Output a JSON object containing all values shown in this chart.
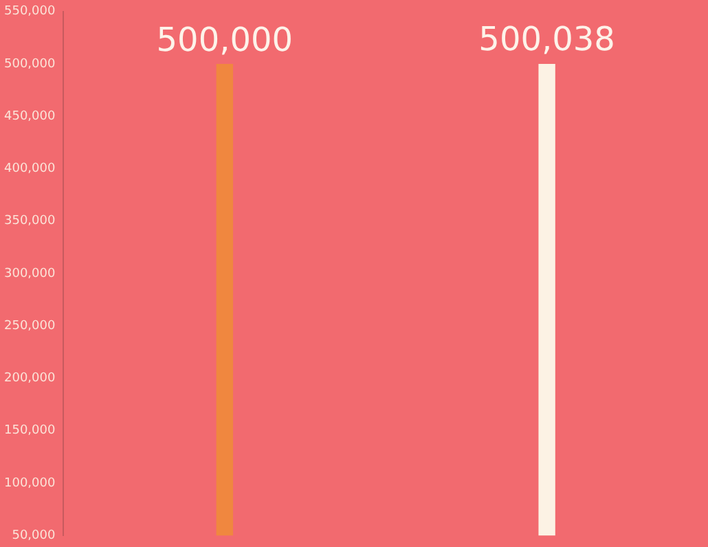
{
  "chart_data": {
    "type": "bar",
    "categories": [
      null,
      null
    ],
    "values": [
      500000,
      500038
    ],
    "colors": [
      "#f0873f",
      "#fcf2e4"
    ],
    "ylim": [
      50000,
      550000
    ],
    "yticks": [
      {
        "value": 50000,
        "label": "50,000"
      },
      {
        "value": 100000,
        "label": "100,000"
      },
      {
        "value": 150000,
        "label": "150,000"
      },
      {
        "value": 200000,
        "label": "200,000"
      },
      {
        "value": 250000,
        "label": "250,000"
      },
      {
        "value": 300000,
        "label": "300,000"
      },
      {
        "value": 350000,
        "label": "350,000"
      },
      {
        "value": 400000,
        "label": "400,000"
      },
      {
        "value": 450000,
        "label": "450,000"
      },
      {
        "value": 500000,
        "label": "500,000"
      },
      {
        "value": 550000,
        "label": "550,000"
      }
    ],
    "value_labels": [
      "500,000",
      "500,038"
    ],
    "grid": false,
    "legend": false,
    "tick_labels": "y"
  }
}
